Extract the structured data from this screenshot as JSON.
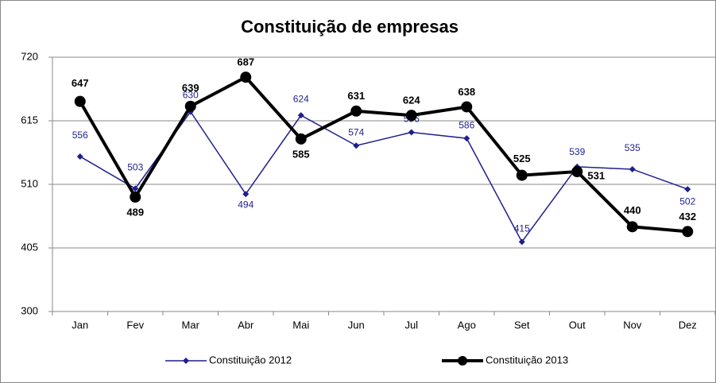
{
  "chart_data": {
    "type": "line",
    "title": "Constituição de empresas",
    "categories": [
      "Jan",
      "Fev",
      "Mar",
      "Abr",
      "Mai",
      "Jun",
      "Jul",
      "Ago",
      "Set",
      "Out",
      "Nov",
      "Dez"
    ],
    "series": [
      {
        "name": "Constituição 2012",
        "color": "#1f1f8f",
        "values": [
          556,
          503,
          630,
          494,
          624,
          574,
          596,
          586,
          415,
          539,
          535,
          502
        ]
      },
      {
        "name": "Constituição 2013",
        "color": "#000000",
        "values": [
          647,
          489,
          639,
          687,
          585,
          631,
          624,
          638,
          525,
          531,
          440,
          432
        ]
      }
    ],
    "ylim": [
      300,
      720
    ],
    "yticks": [
      300,
      405,
      510,
      615,
      720
    ],
    "grid": true,
    "legend": "bottom"
  }
}
